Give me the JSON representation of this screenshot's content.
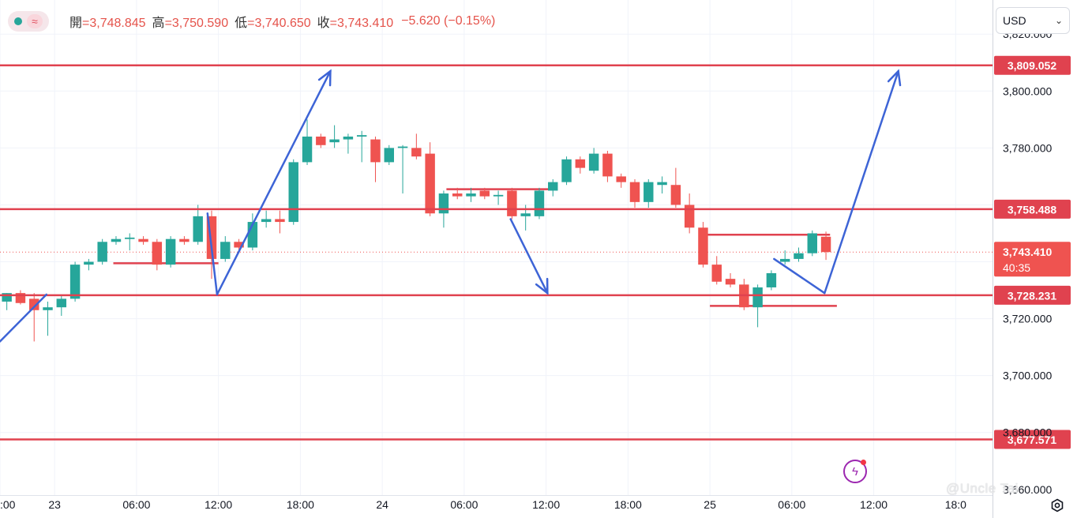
{
  "header": {
    "status_icon": "green-dot-icon",
    "indicator_icon": "wave-icon",
    "open_label": "開",
    "open_value": "=3,748.845",
    "high_label": "高",
    "high_value": "=3,750.590",
    "low_label": "低",
    "low_value": "=3,740.650",
    "close_label": "收",
    "close_value": "=3,743.410",
    "change": "−5.620 (−0.15%)"
  },
  "currency_select": {
    "value": "USD"
  },
  "watermark": "@Uncle Tai",
  "colors": {
    "up": "#26a69a",
    "down": "#ef5350",
    "level_line": "#e0424f",
    "arrow": "#3d64d6",
    "grid": "#f0f3fa",
    "axis_text": "#131722",
    "countdown_bg": "#ef5350"
  },
  "chart_data": {
    "type": "candlestick",
    "x_ticks": [
      {
        "label": ":00",
        "hour": -24
      },
      {
        "label": "23",
        "hour": -20
      },
      {
        "label": "06:00",
        "hour": -14
      },
      {
        "label": "12:00",
        "hour": -8
      },
      {
        "label": "18:00",
        "hour": -2
      },
      {
        "label": "24",
        "hour": 4
      },
      {
        "label": "06:00",
        "hour": 10
      },
      {
        "label": "12:00",
        "hour": 16
      },
      {
        "label": "18:00",
        "hour": 22
      },
      {
        "label": "25",
        "hour": 28
      },
      {
        "label": "06:00",
        "hour": 34
      },
      {
        "label": "12:00",
        "hour": 40
      },
      {
        "label": "18:0",
        "hour": 46
      }
    ],
    "y_ticks": [
      "3,680.000",
      "3,700.000",
      "3,720.000",
      "3,780.000",
      "3,800.000",
      "3,820.000"
    ],
    "y_tick_values": [
      3680,
      3700,
      3720,
      3780,
      3800,
      3820
    ],
    "y_partial_tick": {
      "label": "3,660.000",
      "value": 3660
    },
    "ylim": [
      3658,
      3832
    ],
    "xlim": [
      -24,
      48.7
    ],
    "level_lines": [
      {
        "value": 3809.052,
        "label": "3,809.052"
      },
      {
        "value": 3758.488,
        "label": "3,758.488"
      },
      {
        "value": 3728.231,
        "label": "3,728.231"
      },
      {
        "value": 3677.571,
        "label": "3,677.571"
      }
    ],
    "current_price": {
      "value": 3743.41,
      "label": "3,743.410",
      "countdown": "40:35"
    },
    "candles": [
      {
        "t": -23.5,
        "o": 3726.0,
        "h": 3729.0,
        "l": 3723.0,
        "c": 3729.0
      },
      {
        "t": -22.5,
        "o": 3729.0,
        "h": 3730.0,
        "l": 3725.0,
        "c": 3725.5
      },
      {
        "t": -21.5,
        "o": 3727.0,
        "h": 3729.0,
        "l": 3712.0,
        "c": 3723.0
      },
      {
        "t": -20.5,
        "o": 3723.0,
        "h": 3726.0,
        "l": 3714.0,
        "c": 3724.0
      },
      {
        "t": -19.5,
        "o": 3724.0,
        "h": 3728.0,
        "l": 3721.0,
        "c": 3727.0
      },
      {
        "t": -18.5,
        "o": 3727.0,
        "h": 3740.0,
        "l": 3726.0,
        "c": 3739.0
      },
      {
        "t": -17.5,
        "o": 3739.0,
        "h": 3741.0,
        "l": 3737.0,
        "c": 3740.0
      },
      {
        "t": -16.5,
        "o": 3740.0,
        "h": 3748.0,
        "l": 3739.0,
        "c": 3747.0
      },
      {
        "t": -15.5,
        "o": 3747.0,
        "h": 3749.0,
        "l": 3746.0,
        "c": 3748.0
      },
      {
        "t": -14.5,
        "o": 3748.0,
        "h": 3750.0,
        "l": 3744.0,
        "c": 3748.5
      },
      {
        "t": -13.5,
        "o": 3748.0,
        "h": 3749.0,
        "l": 3746.0,
        "c": 3747.0
      },
      {
        "t": -12.5,
        "o": 3747.0,
        "h": 3748.0,
        "l": 3737.0,
        "c": 3739.0
      },
      {
        "t": -11.5,
        "o": 3739.0,
        "h": 3749.0,
        "l": 3738.0,
        "c": 3748.0
      },
      {
        "t": -10.5,
        "o": 3748.0,
        "h": 3749.0,
        "l": 3746.0,
        "c": 3747.0
      },
      {
        "t": -9.5,
        "o": 3747.0,
        "h": 3760.0,
        "l": 3746.0,
        "c": 3756.0
      },
      {
        "t": -8.5,
        "o": 3756.0,
        "h": 3758.0,
        "l": 3734.0,
        "c": 3741.0
      },
      {
        "t": -7.5,
        "o": 3741.0,
        "h": 3749.0,
        "l": 3740.0,
        "c": 3747.0
      },
      {
        "t": -6.5,
        "o": 3747.0,
        "h": 3748.0,
        "l": 3743.0,
        "c": 3745.0
      },
      {
        "t": -5.5,
        "o": 3745.0,
        "h": 3757.0,
        "l": 3744.0,
        "c": 3754.0
      },
      {
        "t": -4.5,
        "o": 3754.0,
        "h": 3758.0,
        "l": 3752.0,
        "c": 3755.0
      },
      {
        "t": -3.5,
        "o": 3755.0,
        "h": 3758.0,
        "l": 3750.0,
        "c": 3754.0
      },
      {
        "t": -2.5,
        "o": 3754.0,
        "h": 3776.0,
        "l": 3753.0,
        "c": 3775.0
      },
      {
        "t": -1.5,
        "o": 3775.0,
        "h": 3790.0,
        "l": 3774.0,
        "c": 3784.0
      },
      {
        "t": -0.5,
        "o": 3784.0,
        "h": 3785.0,
        "l": 3780.0,
        "c": 3781.0
      },
      {
        "t": 0.5,
        "o": 3782.0,
        "h": 3788.0,
        "l": 3780.0,
        "c": 3783.0
      },
      {
        "t": 1.5,
        "o": 3783.0,
        "h": 3785.0,
        "l": 3778.0,
        "c": 3784.0
      },
      {
        "t": 2.5,
        "o": 3784.0,
        "h": 3786.0,
        "l": 3775.0,
        "c": 3784.5
      },
      {
        "t": 3.5,
        "o": 3783.0,
        "h": 3784.0,
        "l": 3768.0,
        "c": 3775.0
      },
      {
        "t": 4.5,
        "o": 3775.0,
        "h": 3781.0,
        "l": 3774.0,
        "c": 3780.0
      },
      {
        "t": 5.5,
        "o": 3780.0,
        "h": 3781.0,
        "l": 3764.0,
        "c": 3780.5
      },
      {
        "t": 6.5,
        "o": 3780.0,
        "h": 3785.0,
        "l": 3776.0,
        "c": 3777.0
      },
      {
        "t": 7.5,
        "o": 3778.0,
        "h": 3782.0,
        "l": 3756.0,
        "c": 3757.0
      },
      {
        "t": 8.5,
        "o": 3757.0,
        "h": 3765.0,
        "l": 3752.0,
        "c": 3764.0
      },
      {
        "t": 9.5,
        "o": 3764.0,
        "h": 3766.0,
        "l": 3762.0,
        "c": 3763.0
      },
      {
        "t": 10.5,
        "o": 3763.0,
        "h": 3766.0,
        "l": 3761.0,
        "c": 3764.0
      },
      {
        "t": 11.5,
        "o": 3765.0,
        "h": 3766.0,
        "l": 3762.0,
        "c": 3763.0
      },
      {
        "t": 12.5,
        "o": 3763.0,
        "h": 3765.0,
        "l": 3760.0,
        "c": 3763.5
      },
      {
        "t": 13.5,
        "o": 3765.0,
        "h": 3766.0,
        "l": 3755.0,
        "c": 3756.0
      },
      {
        "t": 14.5,
        "o": 3756.0,
        "h": 3760.0,
        "l": 3751.0,
        "c": 3757.0
      },
      {
        "t": 15.5,
        "o": 3756.0,
        "h": 3766.0,
        "l": 3755.0,
        "c": 3765.0
      },
      {
        "t": 16.5,
        "o": 3765.0,
        "h": 3769.0,
        "l": 3763.0,
        "c": 3768.0
      },
      {
        "t": 17.5,
        "o": 3768.0,
        "h": 3777.0,
        "l": 3767.0,
        "c": 3776.0
      },
      {
        "t": 18.5,
        "o": 3776.0,
        "h": 3777.0,
        "l": 3771.0,
        "c": 3773.0
      },
      {
        "t": 19.5,
        "o": 3772.0,
        "h": 3780.0,
        "l": 3771.0,
        "c": 3778.0
      },
      {
        "t": 20.5,
        "o": 3778.0,
        "h": 3779.0,
        "l": 3768.0,
        "c": 3770.0
      },
      {
        "t": 21.5,
        "o": 3770.0,
        "h": 3771.0,
        "l": 3766.0,
        "c": 3768.0
      },
      {
        "t": 22.5,
        "o": 3768.0,
        "h": 3769.0,
        "l": 3759.0,
        "c": 3761.0
      },
      {
        "t": 23.5,
        "o": 3761.0,
        "h": 3769.0,
        "l": 3759.0,
        "c": 3768.0
      },
      {
        "t": 24.5,
        "o": 3767.0,
        "h": 3770.0,
        "l": 3764.0,
        "c": 3768.0
      },
      {
        "t": 25.5,
        "o": 3767.0,
        "h": 3773.0,
        "l": 3759.0,
        "c": 3760.0
      },
      {
        "t": 26.5,
        "o": 3760.0,
        "h": 3764.0,
        "l": 3750.0,
        "c": 3752.0
      },
      {
        "t": 27.5,
        "o": 3752.0,
        "h": 3754.0,
        "l": 3738.0,
        "c": 3739.0
      },
      {
        "t": 28.5,
        "o": 3739.0,
        "h": 3742.0,
        "l": 3732.0,
        "c": 3733.0
      },
      {
        "t": 29.5,
        "o": 3734.0,
        "h": 3736.0,
        "l": 3731.0,
        "c": 3732.0
      },
      {
        "t": 30.5,
        "o": 3732.0,
        "h": 3734.0,
        "l": 3723.0,
        "c": 3724.0
      },
      {
        "t": 31.5,
        "o": 3724.0,
        "h": 3732.0,
        "l": 3717.0,
        "c": 3731.0
      },
      {
        "t": 32.5,
        "o": 3731.0,
        "h": 3737.0,
        "l": 3730.0,
        "c": 3736.0
      },
      {
        "t": 33.5,
        "o": 3740.0,
        "h": 3744.0,
        "l": 3739.0,
        "c": 3741.0
      },
      {
        "t": 34.5,
        "o": 3741.0,
        "h": 3745.0,
        "l": 3740.0,
        "c": 3743.0
      },
      {
        "t": 35.5,
        "o": 3743.0,
        "h": 3751.0,
        "l": 3742.0,
        "c": 3750.0
      },
      {
        "t": 36.5,
        "o": 3748.8,
        "h": 3750.6,
        "l": 3740.65,
        "c": 3743.41
      }
    ],
    "support_resistance_segments": [
      {
        "t0": -15.7,
        "t1": -8.0,
        "v": 3739.5
      },
      {
        "t0": 8.7,
        "t1": 16.7,
        "v": 3765.5
      },
      {
        "t0": 27.5,
        "t1": 36.8,
        "v": 3749.5
      },
      {
        "t0": 28.0,
        "t1": 37.3,
        "v": 3724.5
      }
    ],
    "projection_arrows": [
      {
        "path": [
          [
            -24,
            3712
          ],
          [
            -20.6,
            3728.5
          ]
        ],
        "head": false
      },
      {
        "path": [
          [
            -8.8,
            3757
          ],
          [
            -8.1,
            3728.5
          ],
          [
            0.2,
            3807
          ]
        ],
        "head": true
      },
      {
        "path": [
          [
            13.4,
            3755
          ],
          [
            16.1,
            3729
          ]
        ],
        "head": true
      },
      {
        "path": [
          [
            32.7,
            3741
          ],
          [
            36.4,
            3729
          ],
          [
            41.8,
            3807
          ]
        ],
        "head": true
      }
    ]
  }
}
